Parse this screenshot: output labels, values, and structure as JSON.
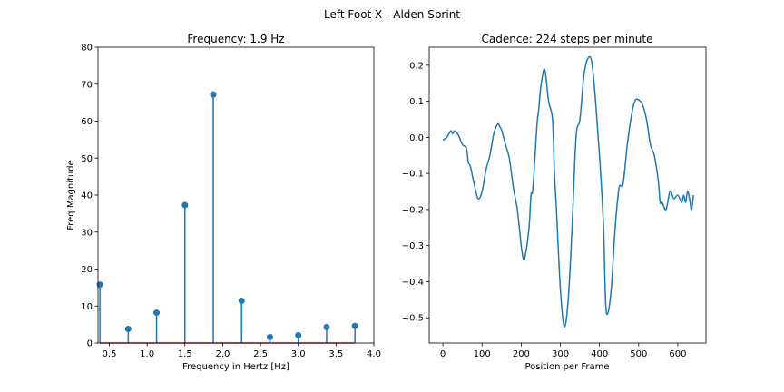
{
  "figure": {
    "suptitle": "Left Foot X - Alden Sprint"
  },
  "chart_data": [
    {
      "type": "stem",
      "title": "Frequency: 1.9 Hz",
      "xlabel": "Frequency in Hertz [Hz]",
      "ylabel": "Freq Magnitude",
      "xlim": [
        0.35,
        4.0
      ],
      "ylim": [
        0,
        80
      ],
      "xticks": [
        0.5,
        1.0,
        1.5,
        2.0,
        2.5,
        3.0,
        3.5,
        4.0
      ],
      "xtick_labels": [
        "0.5",
        "1.0",
        "1.5",
        "2.0",
        "2.5",
        "3.0",
        "3.5",
        "4.0"
      ],
      "yticks": [
        0,
        10,
        20,
        30,
        40,
        50,
        60,
        70,
        80
      ],
      "ytick_labels": [
        "0",
        "10",
        "20",
        "30",
        "40",
        "50",
        "60",
        "70",
        "80"
      ],
      "x": [
        0.375,
        0.75,
        1.125,
        1.5,
        1.875,
        2.25,
        2.625,
        3.0,
        3.375,
        3.75
      ],
      "values": [
        15.8,
        3.8,
        8.2,
        37.3,
        67.2,
        11.4,
        1.6,
        2.1,
        4.3,
        4.6
      ],
      "stem_color": "#1f77b4",
      "baseline_color": "#d62728"
    },
    {
      "type": "line",
      "title": "Cadence: 224 steps per minute",
      "xlabel": "Position per Frame",
      "ylabel": "",
      "xlim": [
        -35,
        672
      ],
      "ylim": [
        -0.57,
        0.25
      ],
      "xticks": [
        0,
        100,
        200,
        300,
        400,
        500,
        600
      ],
      "xtick_labels": [
        "0",
        "100",
        "200",
        "300",
        "400",
        "500",
        "600"
      ],
      "yticks": [
        0.2,
        0.1,
        0.0,
        -0.1,
        -0.2,
        -0.3,
        -0.4,
        -0.5
      ],
      "ytick_labels": [
        "0.2",
        "0.1",
        "0.0",
        "−0.1",
        "−0.2",
        "−0.3",
        "−0.4",
        "−0.5"
      ],
      "color": "#1f77b4",
      "x": [
        0,
        10,
        20,
        25,
        30,
        40,
        50,
        60,
        65,
        70,
        80,
        90,
        100,
        110,
        120,
        130,
        140,
        145,
        150,
        160,
        170,
        180,
        190,
        200,
        205,
        210,
        220,
        225,
        230,
        240,
        245,
        250,
        260,
        270,
        280,
        285,
        290,
        300,
        310,
        320,
        330,
        340,
        350,
        360,
        370,
        380,
        390,
        400,
        410,
        415,
        420,
        430,
        440,
        450,
        460,
        470,
        480,
        490,
        500,
        510,
        520,
        530,
        540,
        550,
        555,
        560,
        570,
        580,
        590,
        600,
        610,
        615,
        620,
        625,
        630,
        635,
        640
      ],
      "y": [
        -0.008,
        0.0,
        0.018,
        0.01,
        0.018,
        0.005,
        -0.02,
        -0.03,
        -0.07,
        -0.08,
        -0.13,
        -0.17,
        -0.15,
        -0.09,
        -0.05,
        0.01,
        0.037,
        0.03,
        0.02,
        -0.02,
        -0.06,
        -0.14,
        -0.2,
        -0.3,
        -0.335,
        -0.33,
        -0.25,
        -0.16,
        -0.14,
        0.03,
        0.08,
        0.14,
        0.188,
        0.1,
        0.05,
        -0.1,
        -0.2,
        -0.42,
        -0.525,
        -0.45,
        -0.25,
        0.0,
        0.05,
        0.17,
        0.218,
        0.21,
        0.1,
        -0.05,
        -0.24,
        -0.44,
        -0.49,
        -0.42,
        -0.25,
        -0.14,
        -0.13,
        -0.03,
        0.05,
        0.1,
        0.104,
        0.09,
        0.05,
        -0.02,
        -0.05,
        -0.12,
        -0.18,
        -0.18,
        -0.2,
        -0.15,
        -0.17,
        -0.16,
        -0.18,
        -0.16,
        -0.18,
        -0.15,
        -0.17,
        -0.2,
        -0.16
      ],
      "grid": false
    }
  ]
}
